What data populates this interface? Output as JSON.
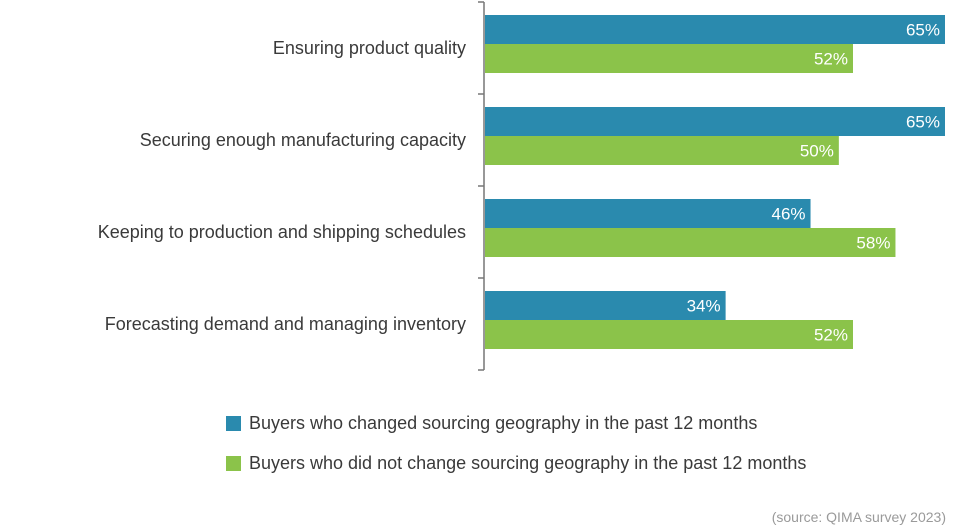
{
  "chart_data": {
    "type": "bar",
    "orientation": "horizontal",
    "categories": [
      "Ensuring product quality",
      "Securing enough manufacturing capacity",
      "Keeping to production and shipping schedules",
      "Forecasting demand and managing inventory"
    ],
    "series": [
      {
        "name": "Buyers who changed sourcing geography in the past 12 months",
        "values": [
          65,
          65,
          46,
          34
        ],
        "labels": [
          "65%",
          "65%",
          "46%",
          "34%"
        ],
        "color": "#2a8aae"
      },
      {
        "name": "Buyers who did not change sourcing geography in the past 12 months",
        "values": [
          52,
          50,
          58,
          52
        ],
        "labels": [
          "52%",
          "50%",
          "58%",
          "52%"
        ],
        "color": "#8bc34a"
      }
    ],
    "xlim": [
      0,
      65
    ],
    "grid": false,
    "legend_position": "bottom"
  },
  "source": "(source: QIMA survey 2023)"
}
